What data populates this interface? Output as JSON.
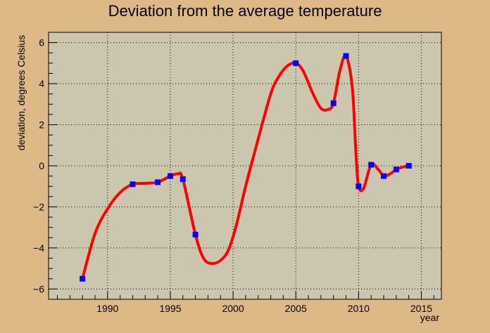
{
  "chart_data": {
    "type": "line",
    "title": "Deviation from the average temperature",
    "xlabel": "year",
    "ylabel": "deviation, degrees Celsius",
    "xlim": [
      1985.3,
      2016.6
    ],
    "ylim": [
      -6.5,
      6.5
    ],
    "x_ticks": [
      1990,
      1995,
      2000,
      2005,
      2010,
      2015
    ],
    "y_ticks": [
      -6,
      -4,
      -2,
      0,
      2,
      4,
      6
    ],
    "grid": true,
    "series": [
      {
        "line_color": "#ff0000",
        "marker_color": "#0000ff",
        "marker": "square",
        "x": [
          1988,
          1992,
          1994,
          1995,
          1996,
          1997,
          2005,
          2008,
          2009,
          2010,
          2011,
          2012,
          2013,
          2014
        ],
        "y": [
          -5.5,
          -0.9,
          -0.8,
          -0.5,
          -0.65,
          -3.35,
          5.0,
          3.05,
          5.35,
          -1.0,
          0.05,
          -0.5,
          -0.18,
          0.0
        ]
      }
    ],
    "curve": {
      "x": [
        1988,
        1989,
        1990,
        1991,
        1992,
        1993,
        1994,
        1995,
        1995.6,
        1996,
        1997,
        1997.7,
        1998.5,
        1999.2,
        1999.7,
        2000.3,
        2001,
        2002,
        2003,
        2003.6,
        2004.3,
        2005,
        2005.6,
        2006.3,
        2007,
        2007.6,
        2008,
        2008.5,
        2009,
        2009.5,
        2009.8,
        2010,
        2010.4,
        2011,
        2011.6,
        2012,
        2012.5,
        2013,
        2013.6,
        2014
      ],
      "y": [
        -5.5,
        -3.3,
        -2.1,
        -1.3,
        -0.9,
        -0.85,
        -0.8,
        -0.5,
        -0.4,
        -0.65,
        -3.35,
        -4.55,
        -4.75,
        -4.5,
        -4.0,
        -2.8,
        -1.0,
        1.3,
        3.5,
        4.3,
        4.85,
        5.0,
        4.6,
        3.6,
        2.8,
        2.75,
        3.05,
        4.6,
        5.35,
        3.8,
        0.5,
        -1.0,
        -1.1,
        0.05,
        -0.2,
        -0.5,
        -0.4,
        -0.18,
        -0.05,
        0.0
      ]
    }
  }
}
